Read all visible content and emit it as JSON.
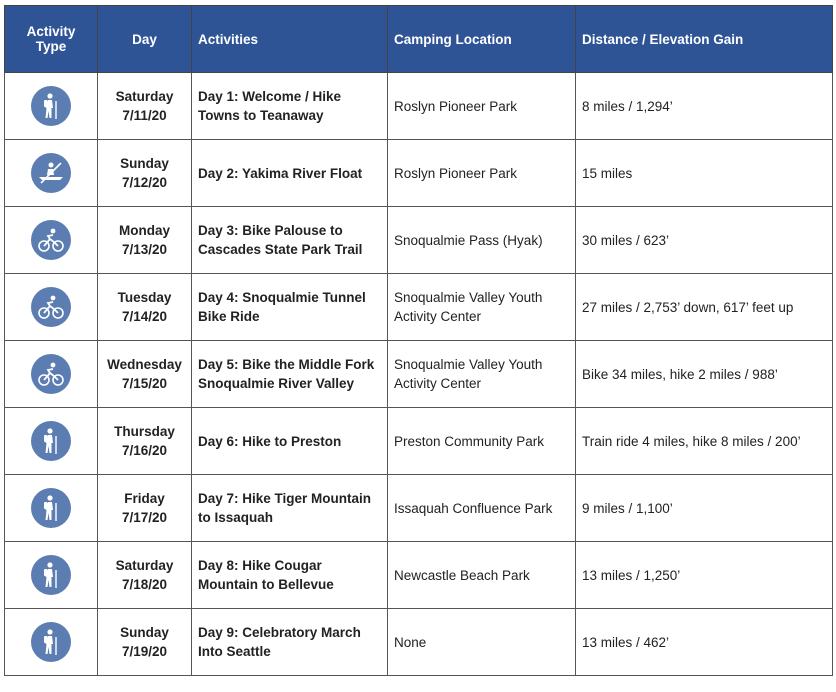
{
  "colors": {
    "header_bg": "#2f5496",
    "icon_bg": "#5b7db1"
  },
  "headers": {
    "type": "Activity Type",
    "day": "Day",
    "activities": "Activities",
    "camping": "Camping Location",
    "distance": "Distance / Elevation Gain"
  },
  "rows": [
    {
      "icon": "hiker-icon",
      "weekday": "Saturday",
      "date": "7/11/20",
      "activity": "Day 1: Welcome / Hike Towns to Teanaway",
      "camping": "Roslyn Pioneer Park",
      "distance": "8 miles / 1,294’"
    },
    {
      "icon": "kayak-icon",
      "weekday": "Sunday",
      "date": "7/12/20",
      "activity": "Day 2: Yakima River Float",
      "camping": "Roslyn Pioneer Park",
      "distance": "15 miles"
    },
    {
      "icon": "bicycle-icon",
      "weekday": "Monday",
      "date": "7/13/20",
      "activity": "Day 3: Bike Palouse to Cascades State Park Trail",
      "camping": "Snoqualmie Pass (Hyak)",
      "distance": "30 miles / 623’"
    },
    {
      "icon": "bicycle-icon",
      "weekday": "Tuesday",
      "date": "7/14/20",
      "activity": "Day 4: Snoqualmie Tunnel Bike Ride",
      "camping": "Snoqualmie Valley Youth Activity Center",
      "distance": "27 miles / 2,753’ down,  617’ feet up"
    },
    {
      "icon": "bicycle-icon",
      "weekday": "Wednesday",
      "date": "7/15/20",
      "activity": "Day 5: Bike the Middle Fork Snoqualmie River Valley",
      "camping": "Snoqualmie Valley Youth Activity Center",
      "distance": "Bike 34 miles, hike 2 miles / 988’"
    },
    {
      "icon": "hiker-icon",
      "weekday": "Thursday",
      "date": "7/16/20",
      "activity": "Day 6: Hike to Preston",
      "camping": "Preston Community  Park",
      "distance": "Train ride 4 miles, hike 8 miles / 200’"
    },
    {
      "icon": "hiker-icon",
      "weekday": "Friday",
      "date": "7/17/20",
      "activity": "Day 7: Hike Tiger Mountain to Issaquah",
      "camping": "Issaquah Confluence Park",
      "distance": "9 miles / 1,100’"
    },
    {
      "icon": "hiker-icon",
      "weekday": "Saturday",
      "date": "7/18/20",
      "activity": "Day 8: Hike Cougar Mountain to Bellevue",
      "camping": "Newcastle Beach Park",
      "distance": "13 miles / 1,250’"
    },
    {
      "icon": "hiker-icon",
      "weekday": "Sunday",
      "date": "7/19/20",
      "activity": "Day 9: Celebratory March Into Seattle",
      "camping": "None",
      "distance": "13 miles / 462’"
    }
  ]
}
